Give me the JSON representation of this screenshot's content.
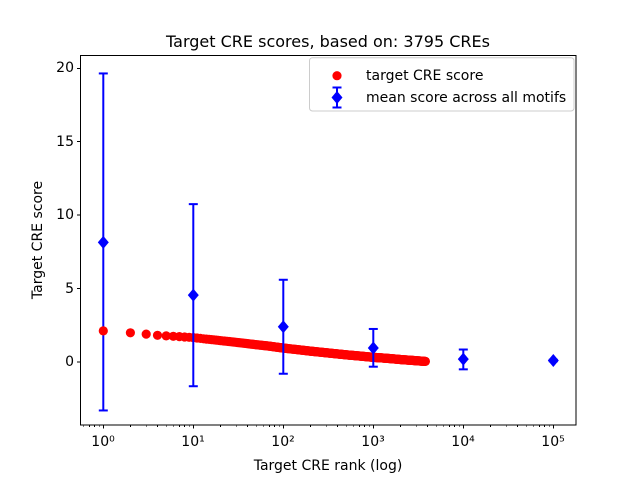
{
  "figure": {
    "title": "Target CRE scores, based on: 3795 CREs",
    "xlabel": "Target CRE rank (log)",
    "ylabel": "Target CRE score"
  },
  "legend": {
    "items": [
      {
        "label": "target CRE score",
        "marker": "red-circle",
        "color": "#ff0000"
      },
      {
        "label": "mean score across all motifs",
        "marker": "blue-diamond-errorbar",
        "color": "#0000ff"
      }
    ],
    "border_color": "#cccccc",
    "position": "upper right"
  },
  "colors": {
    "target_series": "#ff0000",
    "mean_series": "#0000ff",
    "axes": "#000000",
    "background": "#ffffff"
  },
  "chart_data": {
    "type": "scatter",
    "title": "Target CRE scores, based on: 3795 CREs",
    "xlabel": "Target CRE rank (log)",
    "ylabel": "Target CRE score",
    "x_scale": "log",
    "xlim_log10": [
      -0.25,
      5.25
    ],
    "ylim": [
      -4.3,
      20.9
    ],
    "grid": false,
    "y_ticks": [
      0,
      5,
      10,
      15,
      20
    ],
    "y_tick_labels": [
      "0",
      "5",
      "10",
      "15",
      "20"
    ],
    "x_ticks": [
      1,
      10,
      100,
      1000,
      10000,
      100000
    ],
    "x_tick_labels": [
      "10⁰",
      "10¹",
      "10²",
      "10³",
      "10⁴",
      "10⁵"
    ],
    "series": [
      {
        "name": "target CRE score",
        "type": "scatter",
        "marker": "circle",
        "color": "#ff0000",
        "n_points": 3795,
        "rank_range": [
          1,
          3795
        ],
        "anchors": [
          [
            1,
            2.12
          ],
          [
            2,
            1.99
          ],
          [
            3,
            1.9
          ],
          [
            4,
            1.82
          ],
          [
            5,
            1.78
          ],
          [
            7,
            1.73
          ],
          [
            10,
            1.66
          ],
          [
            15,
            1.54
          ],
          [
            20,
            1.46
          ],
          [
            30,
            1.34
          ],
          [
            50,
            1.18
          ],
          [
            70,
            1.08
          ],
          [
            100,
            0.95
          ],
          [
            150,
            0.83
          ],
          [
            200,
            0.74
          ],
          [
            300,
            0.63
          ],
          [
            500,
            0.49
          ],
          [
            700,
            0.41
          ],
          [
            1000,
            0.32
          ],
          [
            1500,
            0.24
          ],
          [
            2000,
            0.17
          ],
          [
            3000,
            0.09
          ],
          [
            3795,
            0.04
          ]
        ]
      },
      {
        "name": "mean score across all motifs",
        "type": "errorbar",
        "marker": "diamond",
        "color": "#0000ff",
        "x": [
          1,
          10,
          100,
          1000,
          10000,
          100000
        ],
        "y": [
          8.15,
          4.55,
          2.4,
          0.95,
          0.2,
          0.1
        ],
        "err_plus": [
          11.5,
          6.2,
          3.2,
          1.3,
          0.65,
          0.05
        ],
        "err_minus": [
          11.45,
          6.2,
          3.2,
          1.27,
          0.7,
          0.05
        ]
      }
    ]
  }
}
